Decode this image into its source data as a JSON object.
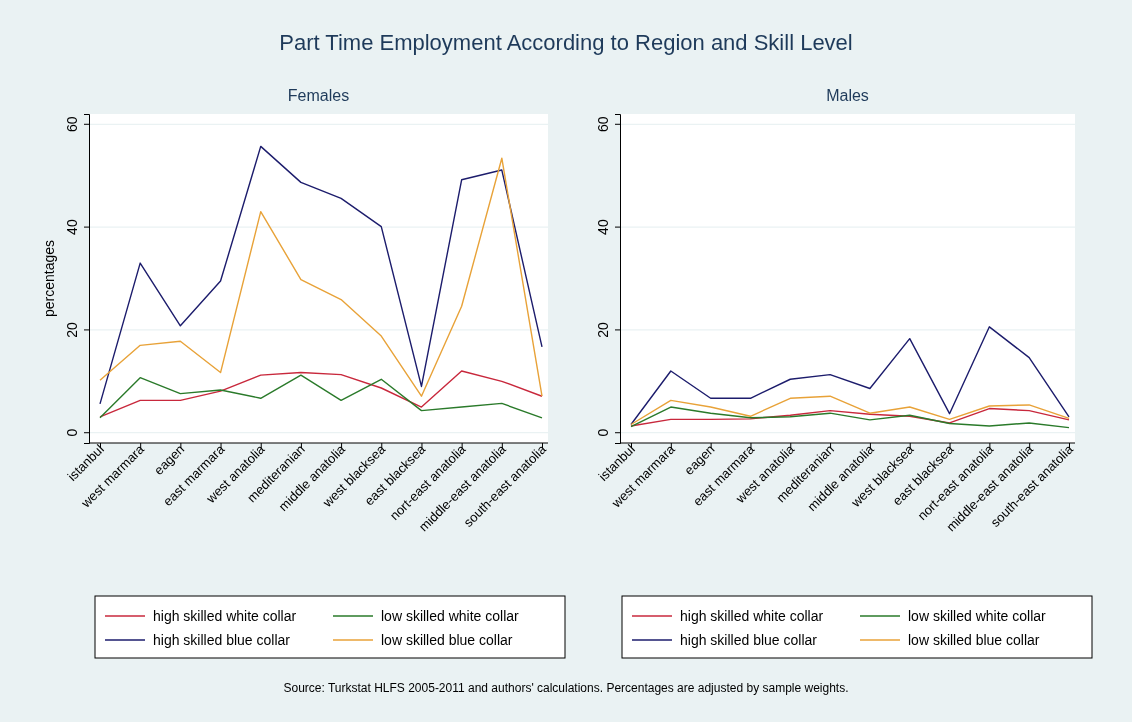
{
  "chart_data": [
    {
      "type": "line",
      "title": "Part Time Employment According to Region and Skill Level",
      "subtitle": "Females",
      "ylabel": "percentages",
      "categories": [
        "istanbul",
        "west marmara",
        "eagen",
        "east marmara",
        "west anatolia",
        "mediteranian",
        "middle anatolia",
        "west blacksea",
        "east blacksea",
        "nort-east anatolia",
        "middle-east anatolia",
        "south-east anatolia"
      ],
      "series": [
        {
          "name": "high skilled white collar",
          "color": "#c8283c",
          "values": [
            3.1,
            6.3,
            6.3,
            8.1,
            11.2,
            11.7,
            11.3,
            8.7,
            5.0,
            12.0,
            10.0,
            7.1
          ]
        },
        {
          "name": "low skilled white collar",
          "color": "#2a7a2a",
          "values": [
            2.9,
            10.7,
            7.6,
            8.3,
            6.7,
            11.2,
            6.3,
            10.4,
            4.3,
            5.0,
            5.7,
            2.9
          ]
        },
        {
          "name": "high skilled blue collar",
          "color": "#1c1c6c",
          "values": [
            5.6,
            33.0,
            20.8,
            29.5,
            55.7,
            48.7,
            45.6,
            40.1,
            9.0,
            49.2,
            51.1,
            16.7
          ]
        },
        {
          "name": "low skilled blue collar",
          "color": "#e8a238",
          "values": [
            10.2,
            17.0,
            17.8,
            11.7,
            43.0,
            29.8,
            25.9,
            18.8,
            7.1,
            24.6,
            53.4,
            7.1
          ]
        }
      ],
      "ylim": [
        -2,
        62
      ],
      "yticks": [
        0,
        20,
        40,
        60
      ],
      "grid": "y",
      "legend": "bottom",
      "marker": "none",
      "line_style": "solid",
      "annotations": [
        "Source: Turkstat HLFS 2005-2011 and authors' calculations. Percentages are adjusted by sample weights."
      ]
    },
    {
      "type": "line",
      "subtitle": "Males",
      "categories": [
        "istanbul",
        "west marmara",
        "eagen",
        "east marmara",
        "west anatolia",
        "mediteranian",
        "middle anatolia",
        "west blacksea",
        "east blacksea",
        "nort-east anatolia",
        "middle-east anatolia",
        "south-east anatolia"
      ],
      "series": [
        {
          "name": "high skilled white collar",
          "color": "#c8283c",
          "values": [
            1.3,
            2.6,
            2.6,
            2.7,
            3.4,
            4.3,
            3.6,
            3.2,
            1.9,
            4.7,
            4.3,
            2.5
          ]
        },
        {
          "name": "low skilled white collar",
          "color": "#2a7a2a",
          "values": [
            1.2,
            5.0,
            3.8,
            2.9,
            3.1,
            3.8,
            2.5,
            3.4,
            1.8,
            1.3,
            1.9,
            1.0
          ]
        },
        {
          "name": "high skilled blue collar",
          "color": "#1c1c6c",
          "values": [
            1.6,
            12.0,
            6.7,
            6.7,
            10.4,
            11.3,
            8.6,
            18.3,
            3.7,
            20.6,
            14.6,
            3.1
          ]
        },
        {
          "name": "low skilled blue collar",
          "color": "#e8a238",
          "values": [
            1.6,
            6.3,
            5.0,
            3.2,
            6.7,
            7.1,
            3.8,
            5.0,
            2.6,
            5.2,
            5.4,
            2.8
          ]
        }
      ],
      "ylim": [
        -2,
        62
      ],
      "yticks": [
        0,
        20,
        40,
        60
      ],
      "grid": "y",
      "legend": "bottom",
      "marker": "none",
      "line_style": "solid"
    }
  ]
}
